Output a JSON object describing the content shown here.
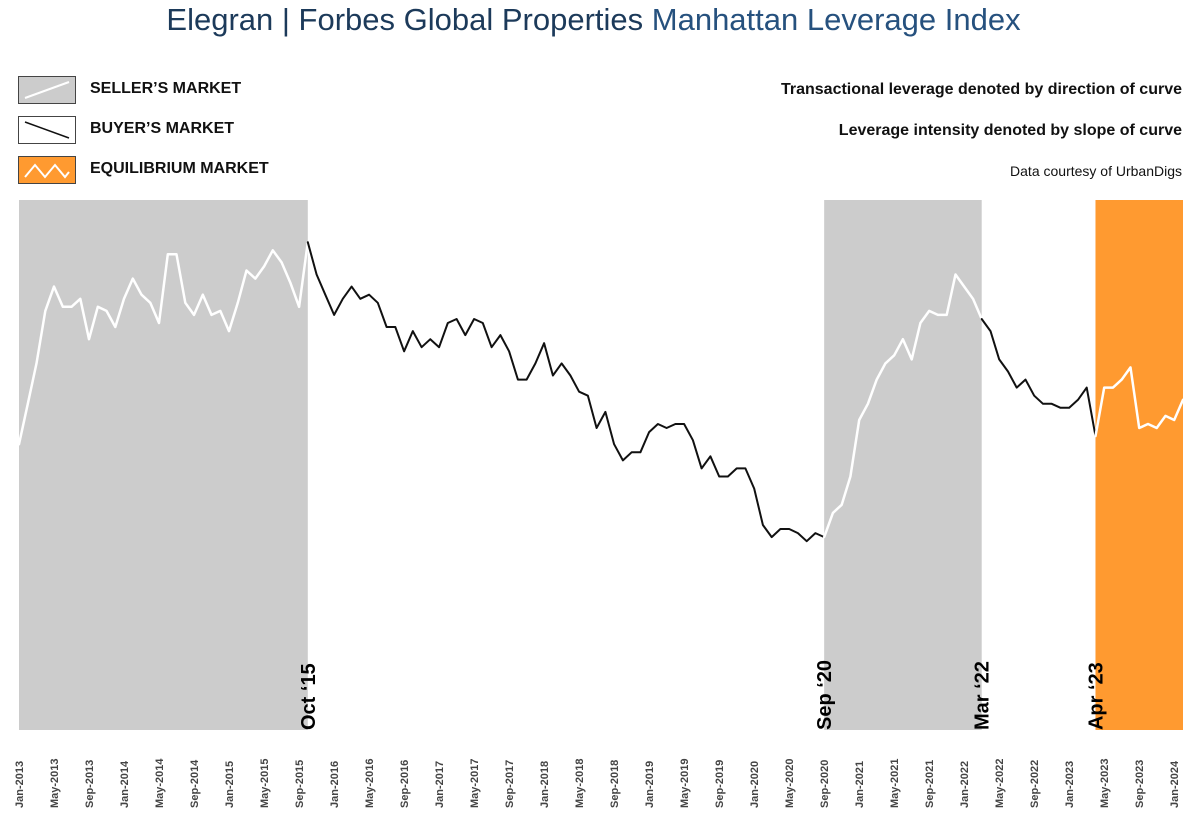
{
  "title": {
    "part1": "Elegran | Forbes Global Properties",
    "part2": "Manhattan Leverage Index"
  },
  "legend": [
    {
      "key": "seller",
      "label": "SELLER’S MARKET",
      "fill": "#cccccc",
      "stroke": "#ffffff"
    },
    {
      "key": "buyer",
      "label": "BUYER’S MARKET",
      "fill": "#ffffff",
      "stroke": "#111111"
    },
    {
      "key": "equilibrium",
      "label": "EQUILIBRIUM MARKET",
      "fill": "#ff9a30",
      "stroke": "#ffffff"
    }
  ],
  "notes": {
    "direction": "Transactional leverage denoted by direction of curve",
    "slope": "Leverage intensity denoted by slope of curve",
    "source": "Data courtesy of UrbanDigs"
  },
  "chart_data": {
    "type": "line",
    "x_start": "Jan-2013",
    "x_end": "Jan-2024",
    "x_ticks": [
      "Jan-2013",
      "May-2013",
      "Sep-2013",
      "Jan-2014",
      "May-2014",
      "Sep-2014",
      "Jan-2015",
      "May-2015",
      "Sep-2015",
      "Jan-2016",
      "May-2016",
      "Sep-2016",
      "Jan-2017",
      "May-2017",
      "Sep-2017",
      "Jan-2018",
      "May-2018",
      "Sep-2018",
      "Jan-2019",
      "May-2019",
      "Sep-2019",
      "Jan-2020",
      "May-2020",
      "Sep-2020",
      "Jan-2021",
      "May-2021",
      "Sep-2021",
      "Jan-2022",
      "May-2022",
      "Sep-2022",
      "Jan-2023",
      "May-2023",
      "Sep-2023",
      "Jan-2024"
    ],
    "ylim": [
      0,
      100
    ],
    "grid": false,
    "legend_position": "top-left",
    "values": [
      45,
      55,
      65,
      78,
      84,
      79,
      79,
      81,
      71,
      79,
      78,
      74,
      81,
      86,
      82,
      80,
      75,
      92,
      92,
      80,
      77,
      82,
      77,
      78,
      73,
      80,
      88,
      86,
      89,
      93,
      90,
      85,
      79,
      95,
      87,
      82,
      77,
      81,
      84,
      81,
      82,
      80,
      74,
      74,
      68,
      73,
      69,
      71,
      69,
      75,
      76,
      72,
      76,
      75,
      69,
      72,
      68,
      61,
      61,
      65,
      70,
      62,
      65,
      62,
      58,
      57,
      49,
      53,
      45,
      41,
      43,
      43,
      48,
      50,
      49,
      50,
      50,
      46,
      39,
      42,
      37,
      37,
      39,
      39,
      34,
      25,
      22,
      24,
      24,
      23,
      21,
      23,
      22,
      28,
      30,
      37,
      51,
      55,
      61,
      65,
      67,
      71,
      66,
      75,
      78,
      77,
      77,
      87,
      84,
      81,
      76,
      73,
      66,
      63,
      59,
      61,
      57,
      55,
      55,
      54,
      54,
      56,
      59,
      47,
      59,
      59,
      61,
      64,
      49,
      50,
      49,
      52,
      51,
      56
    ]
  },
  "regimes": [
    {
      "type": "seller",
      "start_index": 0,
      "end_index": 33,
      "color": "#cccccc"
    },
    {
      "type": "buyer",
      "start_index": 33,
      "end_index": 92
    },
    {
      "type": "seller",
      "start_index": 92,
      "end_index": 110,
      "color": "#cccccc"
    },
    {
      "type": "buyer",
      "start_index": 110,
      "end_index": 123
    },
    {
      "type": "equilibrium",
      "start_index": 123,
      "end_index": 133,
      "color": "#ff9a30"
    }
  ],
  "markers": [
    {
      "label": "Oct ‘15",
      "index": 33
    },
    {
      "label": "Sep ‘20",
      "index": 92
    },
    {
      "label": "Mar ‘22",
      "index": 110
    },
    {
      "label": "Apr ‘23",
      "index": 123
    }
  ],
  "colors": {
    "line_in_shaded": "#ffffff",
    "line_in_buyer": "#111111",
    "axis_text": "#444444"
  }
}
